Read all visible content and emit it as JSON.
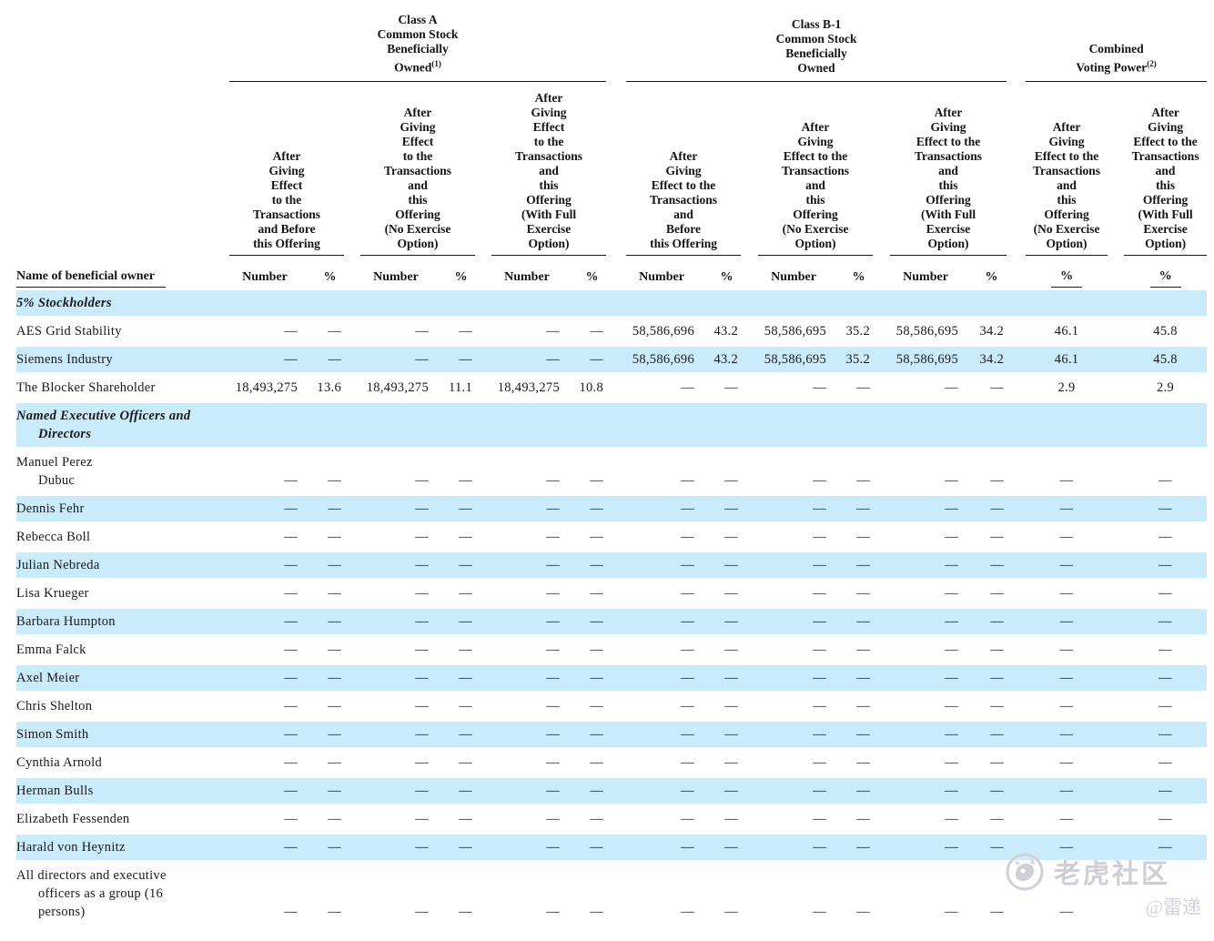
{
  "page": {
    "background": "#ffffff",
    "text_color": "#1a1a1a",
    "stripe_color": "#C9EBFB",
    "rule_color": "#161616"
  },
  "table": {
    "name_header": "Name of beneficial owner",
    "groups": [
      {
        "title": "Class A\nCommon Stock\nBeneficially\nOwned",
        "footnote": "(1)"
      },
      {
        "title": "Class B-1\nCommon Stock\nBeneficially\nOwned",
        "footnote": ""
      },
      {
        "title": "Combined\nVoting Power",
        "footnote": "(2)"
      }
    ],
    "subheaders": [
      "After\nGiving\nEffect\nto the\nTransactions\nand Before\nthis Offering",
      "After\nGiving\nEffect\nto the\nTransactions\nand\nthis\nOffering\n(No Exercise\nOption)",
      "After\nGiving\nEffect\nto the\nTransactions\nand\nthis\nOffering\n(With Full\nExercise\nOption)",
      "After\nGiving\nEffect to the\nTransactions\nand\nBefore\nthis Offering",
      "After\nGiving\nEffect to the\nTransactions\nand\nthis\nOffering\n(No Exercise\nOption)",
      "After\nGiving\nEffect to the\nTransactions\nand\nthis\nOffering\n(With Full\nExercise\nOption)",
      "After\nGiving\nEffect to the\nTransactions\nand\nthis\nOffering\n(No Exercise\nOption)",
      "After\nGiving\nEffect to the\nTransactions\nand\nthis\nOffering\n(With Full\nExercise\nOption)"
    ],
    "column_labels": [
      "Number",
      "%",
      "Number",
      "%",
      "Number",
      "%",
      "Number",
      "%",
      "Number",
      "%",
      "Number",
      "%",
      "%",
      "%"
    ],
    "rows": [
      {
        "type": "section",
        "name": "5% Stockholders",
        "values": []
      },
      {
        "type": "data",
        "name": "AES Grid Stability",
        "values": [
          "—",
          "—",
          "—",
          "—",
          "—",
          "—",
          "58,586,696",
          "43.2",
          "58,586,695",
          "35.2",
          "58,586,695",
          "34.2",
          "46.1",
          "45.8"
        ]
      },
      {
        "type": "data",
        "name": "Siemens Industry",
        "values": [
          "—",
          "—",
          "—",
          "—",
          "—",
          "—",
          "58,586,696",
          "43.2",
          "58,586,695",
          "35.2",
          "58,586,695",
          "34.2",
          "46.1",
          "45.8"
        ]
      },
      {
        "type": "data",
        "name": "The Blocker Shareholder",
        "values": [
          "18,493,275",
          "13.6",
          "18,493,275",
          "11.1",
          "18,493,275",
          "10.8",
          "—",
          "—",
          "—",
          "—",
          "—",
          "—",
          "2.9",
          "2.9"
        ]
      },
      {
        "type": "section",
        "name": "Named Executive Officers and\nDirectors",
        "values": []
      },
      {
        "type": "data",
        "name": "Manuel Perez\nDubuc",
        "values": [
          "—",
          "—",
          "—",
          "—",
          "—",
          "—",
          "—",
          "—",
          "—",
          "—",
          "—",
          "—",
          "—",
          "—"
        ]
      },
      {
        "type": "data",
        "name": "Dennis Fehr",
        "values": [
          "—",
          "—",
          "—",
          "—",
          "—",
          "—",
          "—",
          "—",
          "—",
          "—",
          "—",
          "—",
          "—",
          "—"
        ]
      },
      {
        "type": "data",
        "name": "Rebecca Boll",
        "values": [
          "—",
          "—",
          "—",
          "—",
          "—",
          "—",
          "—",
          "—",
          "—",
          "—",
          "—",
          "—",
          "—",
          "—"
        ]
      },
      {
        "type": "data",
        "name": "Julian Nebreda",
        "values": [
          "—",
          "—",
          "—",
          "—",
          "—",
          "—",
          "—",
          "—",
          "—",
          "—",
          "—",
          "—",
          "—",
          "—"
        ]
      },
      {
        "type": "data",
        "name": "Lisa Krueger",
        "values": [
          "—",
          "—",
          "—",
          "—",
          "—",
          "—",
          "—",
          "—",
          "—",
          "—",
          "—",
          "—",
          "—",
          "—"
        ]
      },
      {
        "type": "data",
        "name": "Barbara Humpton",
        "values": [
          "—",
          "—",
          "—",
          "—",
          "—",
          "—",
          "—",
          "—",
          "—",
          "—",
          "—",
          "—",
          "—",
          "—"
        ]
      },
      {
        "type": "data",
        "name": "Emma Falck",
        "values": [
          "—",
          "—",
          "—",
          "—",
          "—",
          "—",
          "—",
          "—",
          "—",
          "—",
          "—",
          "—",
          "—",
          "—"
        ]
      },
      {
        "type": "data",
        "name": "Axel Meier",
        "values": [
          "—",
          "—",
          "—",
          "—",
          "—",
          "—",
          "—",
          "—",
          "—",
          "—",
          "—",
          "—",
          "—",
          "—"
        ]
      },
      {
        "type": "data",
        "name": "Chris Shelton",
        "values": [
          "—",
          "—",
          "—",
          "—",
          "—",
          "—",
          "—",
          "—",
          "—",
          "—",
          "—",
          "—",
          "—",
          "—"
        ]
      },
      {
        "type": "data",
        "name": "Simon Smith",
        "values": [
          "—",
          "—",
          "—",
          "—",
          "—",
          "—",
          "—",
          "—",
          "—",
          "—",
          "—",
          "—",
          "—",
          "—"
        ]
      },
      {
        "type": "data",
        "name": "Cynthia Arnold",
        "values": [
          "—",
          "—",
          "—",
          "—",
          "—",
          "—",
          "—",
          "—",
          "—",
          "—",
          "—",
          "—",
          "—",
          "—"
        ]
      },
      {
        "type": "data",
        "name": "Herman Bulls",
        "values": [
          "—",
          "—",
          "—",
          "—",
          "—",
          "—",
          "—",
          "—",
          "—",
          "—",
          "—",
          "—",
          "—",
          "—"
        ]
      },
      {
        "type": "data",
        "name": "Elizabeth Fessenden",
        "values": [
          "—",
          "—",
          "—",
          "—",
          "—",
          "—",
          "—",
          "—",
          "—",
          "—",
          "—",
          "—",
          "—",
          "—"
        ]
      },
      {
        "type": "data",
        "name": "Harald von Heynitz",
        "values": [
          "—",
          "—",
          "—",
          "—",
          "—",
          "—",
          "—",
          "—",
          "—",
          "—",
          "—",
          "—",
          "—",
          "—"
        ]
      },
      {
        "type": "data",
        "name": "All directors and executive\nofficers as a group (16\npersons)",
        "values": [
          "—",
          "—",
          "—",
          "—",
          "—",
          "—",
          "—",
          "—",
          "—",
          "—",
          "—",
          "—",
          "—",
          ""
        ]
      }
    ]
  },
  "watermark": {
    "community": "老虎社区",
    "handle": "@雷递",
    "icon": "tiger-logo-icon",
    "color": "#cdced6"
  }
}
